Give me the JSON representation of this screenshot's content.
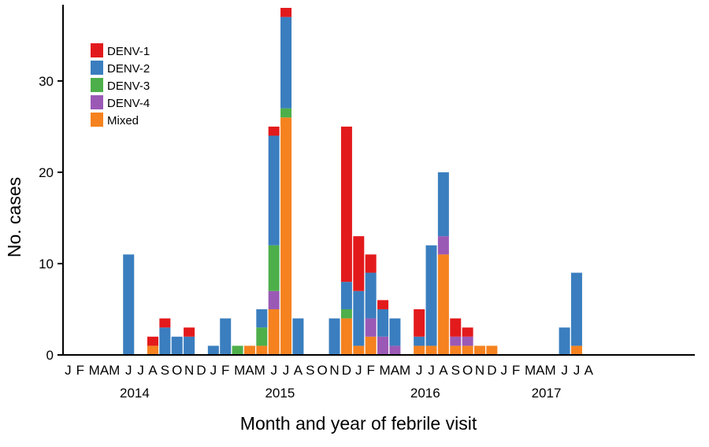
{
  "chart_data": {
    "type": "bar",
    "stacked": true,
    "grid": false,
    "legend_position": "top-left",
    "xlabel": "Month and year of febrile visit",
    "ylabel": "No. cases",
    "ylim": [
      0,
      38
    ],
    "yticks": [
      0,
      10,
      20,
      30
    ],
    "months": [
      "J",
      "F",
      "M",
      "A",
      "M",
      "J",
      "J",
      "A",
      "S",
      "O",
      "N",
      "D",
      "J",
      "F",
      "M",
      "A",
      "M",
      "J",
      "J",
      "A",
      "S",
      "O",
      "N",
      "D",
      "J",
      "F",
      "M",
      "A",
      "M",
      "J",
      "J",
      "A",
      "S",
      "O",
      "N",
      "D",
      "J",
      "F",
      "M",
      "A",
      "M",
      "J",
      "J",
      "A"
    ],
    "month_label_groups": [
      {
        "text": "J",
        "first": 0,
        "last": 0
      },
      {
        "text": "F",
        "first": 1,
        "last": 1
      },
      {
        "text": "MAM",
        "first": 2,
        "last": 4
      },
      {
        "text": "J",
        "first": 5,
        "last": 5
      },
      {
        "text": "J",
        "first": 6,
        "last": 6
      },
      {
        "text": "A",
        "first": 7,
        "last": 7
      },
      {
        "text": "S",
        "first": 8,
        "last": 8
      },
      {
        "text": "O",
        "first": 9,
        "last": 9
      },
      {
        "text": "N",
        "first": 10,
        "last": 10
      },
      {
        "text": "D",
        "first": 11,
        "last": 11
      },
      {
        "text": "J",
        "first": 12,
        "last": 12
      },
      {
        "text": "F",
        "first": 13,
        "last": 13
      },
      {
        "text": "MAM",
        "first": 14,
        "last": 16
      },
      {
        "text": "J",
        "first": 17,
        "last": 17
      },
      {
        "text": "J",
        "first": 18,
        "last": 18
      },
      {
        "text": "A",
        "first": 19,
        "last": 19
      },
      {
        "text": "S",
        "first": 20,
        "last": 20
      },
      {
        "text": "O",
        "first": 21,
        "last": 21
      },
      {
        "text": "N",
        "first": 22,
        "last": 22
      },
      {
        "text": "D",
        "first": 23,
        "last": 23
      },
      {
        "text": "J",
        "first": 24,
        "last": 24
      },
      {
        "text": "F",
        "first": 25,
        "last": 25
      },
      {
        "text": "MAM",
        "first": 26,
        "last": 28
      },
      {
        "text": "J",
        "first": 29,
        "last": 29
      },
      {
        "text": "J",
        "first": 30,
        "last": 30
      },
      {
        "text": "A",
        "first": 31,
        "last": 31
      },
      {
        "text": "S",
        "first": 32,
        "last": 32
      },
      {
        "text": "O",
        "first": 33,
        "last": 33
      },
      {
        "text": "N",
        "first": 34,
        "last": 34
      },
      {
        "text": "D",
        "first": 35,
        "last": 35
      },
      {
        "text": "J",
        "first": 36,
        "last": 36
      },
      {
        "text": "F",
        "first": 37,
        "last": 37
      },
      {
        "text": "MAM",
        "first": 38,
        "last": 40
      },
      {
        "text": "J",
        "first": 41,
        "last": 41
      },
      {
        "text": "J",
        "first": 42,
        "last": 42
      },
      {
        "text": "A",
        "first": 43,
        "last": 43
      }
    ],
    "years": [
      {
        "label": "2014",
        "first": 0,
        "last": 11
      },
      {
        "label": "2015",
        "first": 12,
        "last": 23
      },
      {
        "label": "2016",
        "first": 24,
        "last": 35
      },
      {
        "label": "2017",
        "first": 36,
        "last": 43
      }
    ],
    "series": [
      {
        "name": "Mixed",
        "color": "#f5821f",
        "values": [
          0,
          0,
          0,
          0,
          0,
          0,
          0,
          1,
          0,
          0,
          0,
          0,
          0,
          0,
          0,
          1,
          1,
          5,
          26,
          0,
          0,
          0,
          0,
          4,
          1,
          2,
          0,
          0,
          0,
          1,
          1,
          11,
          1,
          1,
          1,
          1,
          0,
          0,
          0,
          0,
          0,
          0,
          1,
          0
        ]
      },
      {
        "name": "DENV-4",
        "color": "#9b59b6",
        "values": [
          0,
          0,
          0,
          0,
          0,
          0,
          0,
          0,
          0,
          0,
          0,
          0,
          0,
          0,
          0,
          0,
          0,
          2,
          0,
          0,
          0,
          0,
          0,
          0,
          0,
          2,
          2,
          1,
          0,
          0,
          0,
          2,
          1,
          1,
          0,
          0,
          0,
          0,
          0,
          0,
          0,
          0,
          0,
          0
        ]
      },
      {
        "name": "DENV-3",
        "color": "#4daf4a",
        "values": [
          0,
          0,
          0,
          0,
          0,
          0,
          0,
          0,
          0,
          0,
          0,
          0,
          0,
          0,
          1,
          0,
          2,
          5,
          1,
          0,
          0,
          0,
          0,
          1,
          0,
          0,
          0,
          0,
          0,
          0,
          0,
          0,
          0,
          0,
          0,
          0,
          0,
          0,
          0,
          0,
          0,
          0,
          0,
          0
        ]
      },
      {
        "name": "DENV-2",
        "color": "#3a7ebf",
        "values": [
          0,
          0,
          0,
          0,
          0,
          11,
          0,
          0,
          3,
          2,
          2,
          0,
          1,
          4,
          0,
          0,
          2,
          12,
          10,
          4,
          0,
          0,
          4,
          3,
          6,
          5,
          3,
          3,
          0,
          1,
          11,
          7,
          0,
          0,
          0,
          0,
          0,
          0,
          0,
          0,
          0,
          3,
          8,
          0
        ]
      },
      {
        "name": "DENV-1",
        "color": "#e31a1c",
        "values": [
          0,
          0,
          0,
          0,
          0,
          0,
          0,
          1,
          1,
          0,
          1,
          0,
          0,
          0,
          0,
          0,
          0,
          1,
          1,
          0,
          0,
          0,
          0,
          17,
          6,
          2,
          1,
          0,
          0,
          3,
          0,
          0,
          2,
          1,
          0,
          0,
          0,
          0,
          0,
          0,
          0,
          0,
          0,
          0
        ]
      }
    ],
    "legend_order": [
      "DENV-1",
      "DENV-2",
      "DENV-3",
      "DENV-4",
      "Mixed"
    ]
  }
}
